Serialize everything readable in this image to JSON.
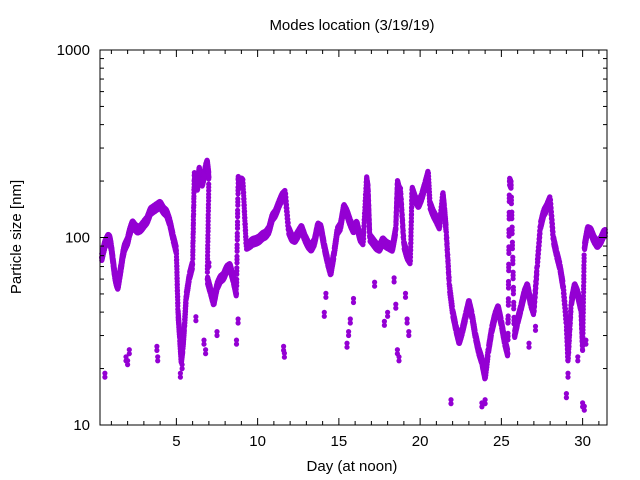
{
  "chart_data": {
    "type": "scatter",
    "title": "Modes location (3/19/19)",
    "xlabel": "Day (at noon)",
    "ylabel": "Particle size [nm]",
    "xlim": [
      0.3,
      31.5
    ],
    "ylim": [
      10,
      1000
    ],
    "yscale": "log",
    "xticks": [
      5,
      10,
      15,
      20,
      25,
      30
    ],
    "yticks": [
      10,
      100,
      1000
    ],
    "ytick_labels": [
      "10",
      "100",
      "1000"
    ],
    "marker_color": "#9400D3",
    "grid": false,
    "series": [
      {
        "points": [
          [
            0.4,
            78
          ],
          [
            0.5,
            85
          ],
          [
            0.6,
            92
          ],
          [
            0.7,
            96
          ],
          [
            0.8,
            100
          ],
          [
            0.9,
            98
          ],
          [
            1.0,
            88
          ],
          [
            1.1,
            75
          ],
          [
            1.2,
            64
          ],
          [
            1.3,
            58
          ],
          [
            1.4,
            55
          ],
          [
            1.5,
            62
          ],
          [
            1.6,
            70
          ],
          [
            1.7,
            80
          ],
          [
            1.8,
            88
          ],
          [
            1.9,
            92
          ],
          [
            2.0,
            96
          ],
          [
            2.1,
            105
          ],
          [
            2.2,
            112
          ],
          [
            2.3,
            118
          ],
          [
            2.4,
            115
          ],
          [
            2.6,
            110
          ],
          [
            2.8,
            112
          ],
          [
            3.0,
            118
          ],
          [
            3.2,
            124
          ],
          [
            3.4,
            138
          ],
          [
            3.6,
            142
          ],
          [
            3.8,
            146
          ],
          [
            4.0,
            150
          ],
          [
            4.2,
            140
          ],
          [
            4.4,
            135
          ],
          [
            4.6,
            120
          ],
          [
            4.8,
            100
          ],
          [
            5.0,
            85
          ],
          [
            5.1,
            40
          ],
          [
            5.2,
            30
          ],
          [
            5.3,
            22
          ],
          [
            5.4,
            26
          ],
          [
            5.5,
            34
          ],
          [
            5.6,
            48
          ],
          [
            5.8,
            62
          ],
          [
            6.0,
            72
          ],
          [
            6.1,
            215
          ],
          [
            6.2,
            200
          ],
          [
            6.3,
            185
          ],
          [
            6.4,
            230
          ],
          [
            6.5,
            205
          ],
          [
            6.6,
            195
          ],
          [
            6.8,
            235
          ],
          [
            6.9,
            250
          ],
          [
            7.0,
            210
          ],
          [
            6.9,
            60
          ],
          [
            7.1,
            52
          ],
          [
            7.3,
            45
          ],
          [
            7.5,
            55
          ],
          [
            7.7,
            60
          ],
          [
            7.9,
            62
          ],
          [
            8.1,
            68
          ],
          [
            8.3,
            70
          ],
          [
            8.5,
            60
          ],
          [
            8.7,
            50
          ],
          [
            8.8,
            205
          ],
          [
            8.9,
            190
          ],
          [
            9.0,
            200
          ],
          [
            9.1,
            195
          ],
          [
            9.3,
            90
          ],
          [
            9.5,
            92
          ],
          [
            9.7,
            95
          ],
          [
            9.9,
            96
          ],
          [
            10.1,
            98
          ],
          [
            10.3,
            102
          ],
          [
            10.5,
            104
          ],
          [
            10.7,
            110
          ],
          [
            10.9,
            128
          ],
          [
            11.1,
            135
          ],
          [
            11.3,
            150
          ],
          [
            11.5,
            165
          ],
          [
            11.7,
            172
          ],
          [
            11.9,
            110
          ],
          [
            12.1,
            100
          ],
          [
            12.3,
            98
          ],
          [
            12.5,
            105
          ],
          [
            12.7,
            112
          ],
          [
            12.9,
            100
          ],
          [
            13.1,
            92
          ],
          [
            13.3,
            88
          ],
          [
            13.5,
            95
          ],
          [
            13.7,
            115
          ],
          [
            13.9,
            112
          ],
          [
            14.1,
            90
          ],
          [
            14.3,
            75
          ],
          [
            14.5,
            65
          ],
          [
            14.7,
            82
          ],
          [
            14.9,
            108
          ],
          [
            15.1,
            115
          ],
          [
            15.3,
            145
          ],
          [
            15.5,
            135
          ],
          [
            15.7,
            120
          ],
          [
            15.9,
            110
          ],
          [
            16.1,
            118
          ],
          [
            16.3,
            100
          ],
          [
            16.5,
            95
          ],
          [
            16.7,
            205
          ],
          [
            16.8,
            180
          ],
          [
            16.9,
            100
          ],
          [
            17.1,
            95
          ],
          [
            17.3,
            90
          ],
          [
            17.5,
            88
          ],
          [
            17.7,
            96
          ],
          [
            17.9,
            92
          ],
          [
            18.1,
            90
          ],
          [
            18.3,
            88
          ],
          [
            18.5,
            110
          ],
          [
            18.6,
            195
          ],
          [
            18.7,
            180
          ],
          [
            18.8,
            175
          ],
          [
            19.0,
            92
          ],
          [
            19.2,
            80
          ],
          [
            19.4,
            75
          ],
          [
            19.5,
            180
          ],
          [
            19.7,
            160
          ],
          [
            19.9,
            150
          ],
          [
            20.1,
            165
          ],
          [
            20.3,
            190
          ],
          [
            20.5,
            220
          ],
          [
            20.6,
            150
          ],
          [
            20.8,
            135
          ],
          [
            21.0,
            125
          ],
          [
            21.2,
            115
          ],
          [
            21.4,
            170
          ],
          [
            21.5,
            140
          ],
          [
            21.6,
            110
          ],
          [
            21.8,
            55
          ],
          [
            22.0,
            40
          ],
          [
            22.2,
            33
          ],
          [
            22.4,
            28
          ],
          [
            22.6,
            32
          ],
          [
            22.8,
            38
          ],
          [
            23.0,
            45
          ],
          [
            23.2,
            38
          ],
          [
            23.4,
            30
          ],
          [
            23.6,
            25
          ],
          [
            23.8,
            22
          ],
          [
            24.0,
            18
          ],
          [
            24.2,
            25
          ],
          [
            24.4,
            32
          ],
          [
            24.6,
            38
          ],
          [
            24.8,
            42
          ],
          [
            25.0,
            35
          ],
          [
            25.2,
            28
          ],
          [
            25.4,
            24
          ],
          [
            25.5,
            200
          ],
          [
            25.6,
            190
          ],
          [
            25.8,
            30
          ],
          [
            26.0,
            36
          ],
          [
            26.2,
            42
          ],
          [
            26.4,
            50
          ],
          [
            26.6,
            55
          ],
          [
            26.8,
            45
          ],
          [
            27.0,
            40
          ],
          [
            27.2,
            70
          ],
          [
            27.4,
            115
          ],
          [
            27.6,
            135
          ],
          [
            27.8,
            145
          ],
          [
            28.0,
            160
          ],
          [
            28.2,
            98
          ],
          [
            28.4,
            82
          ],
          [
            28.6,
            70
          ],
          [
            28.8,
            55
          ],
          [
            29.0,
            35
          ],
          [
            29.1,
            22
          ],
          [
            29.3,
            45
          ],
          [
            29.5,
            55
          ],
          [
            29.7,
            50
          ],
          [
            29.9,
            42
          ],
          [
            30.0,
            25
          ],
          [
            30.1,
            88
          ],
          [
            30.3,
            110
          ],
          [
            30.5,
            108
          ],
          [
            30.7,
            98
          ],
          [
            30.9,
            92
          ],
          [
            31.1,
            96
          ],
          [
            31.3,
            105
          ],
          [
            31.4,
            106
          ],
          [
            0.6,
            18
          ],
          [
            1.9,
            22
          ],
          [
            2.0,
            21
          ],
          [
            2.1,
            24
          ],
          [
            3.8,
            25
          ],
          [
            3.85,
            22
          ],
          [
            5.25,
            18
          ],
          [
            5.35,
            20
          ],
          [
            6.2,
            36
          ],
          [
            6.7,
            27
          ],
          [
            6.8,
            24
          ],
          [
            7.0,
            70
          ],
          [
            7.5,
            30
          ],
          [
            8.7,
            27
          ],
          [
            8.8,
            35
          ],
          [
            11.6,
            25
          ],
          [
            11.65,
            23
          ],
          [
            14.1,
            38
          ],
          [
            14.2,
            48
          ],
          [
            15.5,
            26
          ],
          [
            15.6,
            30
          ],
          [
            15.7,
            35
          ],
          [
            15.9,
            45
          ],
          [
            17.2,
            55
          ],
          [
            17.8,
            34
          ],
          [
            18.0,
            38
          ],
          [
            18.4,
            58
          ],
          [
            18.5,
            42
          ],
          [
            18.6,
            24
          ],
          [
            18.7,
            22
          ],
          [
            19.1,
            48
          ],
          [
            19.2,
            35
          ],
          [
            19.3,
            30
          ],
          [
            21.9,
            13
          ],
          [
            23.8,
            12.5
          ],
          [
            24.0,
            13
          ],
          [
            25.4,
            35
          ],
          [
            26.7,
            26
          ],
          [
            27.1,
            32
          ],
          [
            29.0,
            14
          ],
          [
            29.1,
            18
          ],
          [
            29.7,
            22
          ],
          [
            30.0,
            12.5
          ],
          [
            30.1,
            12
          ],
          [
            30.2,
            27
          ]
        ]
      }
    ]
  }
}
